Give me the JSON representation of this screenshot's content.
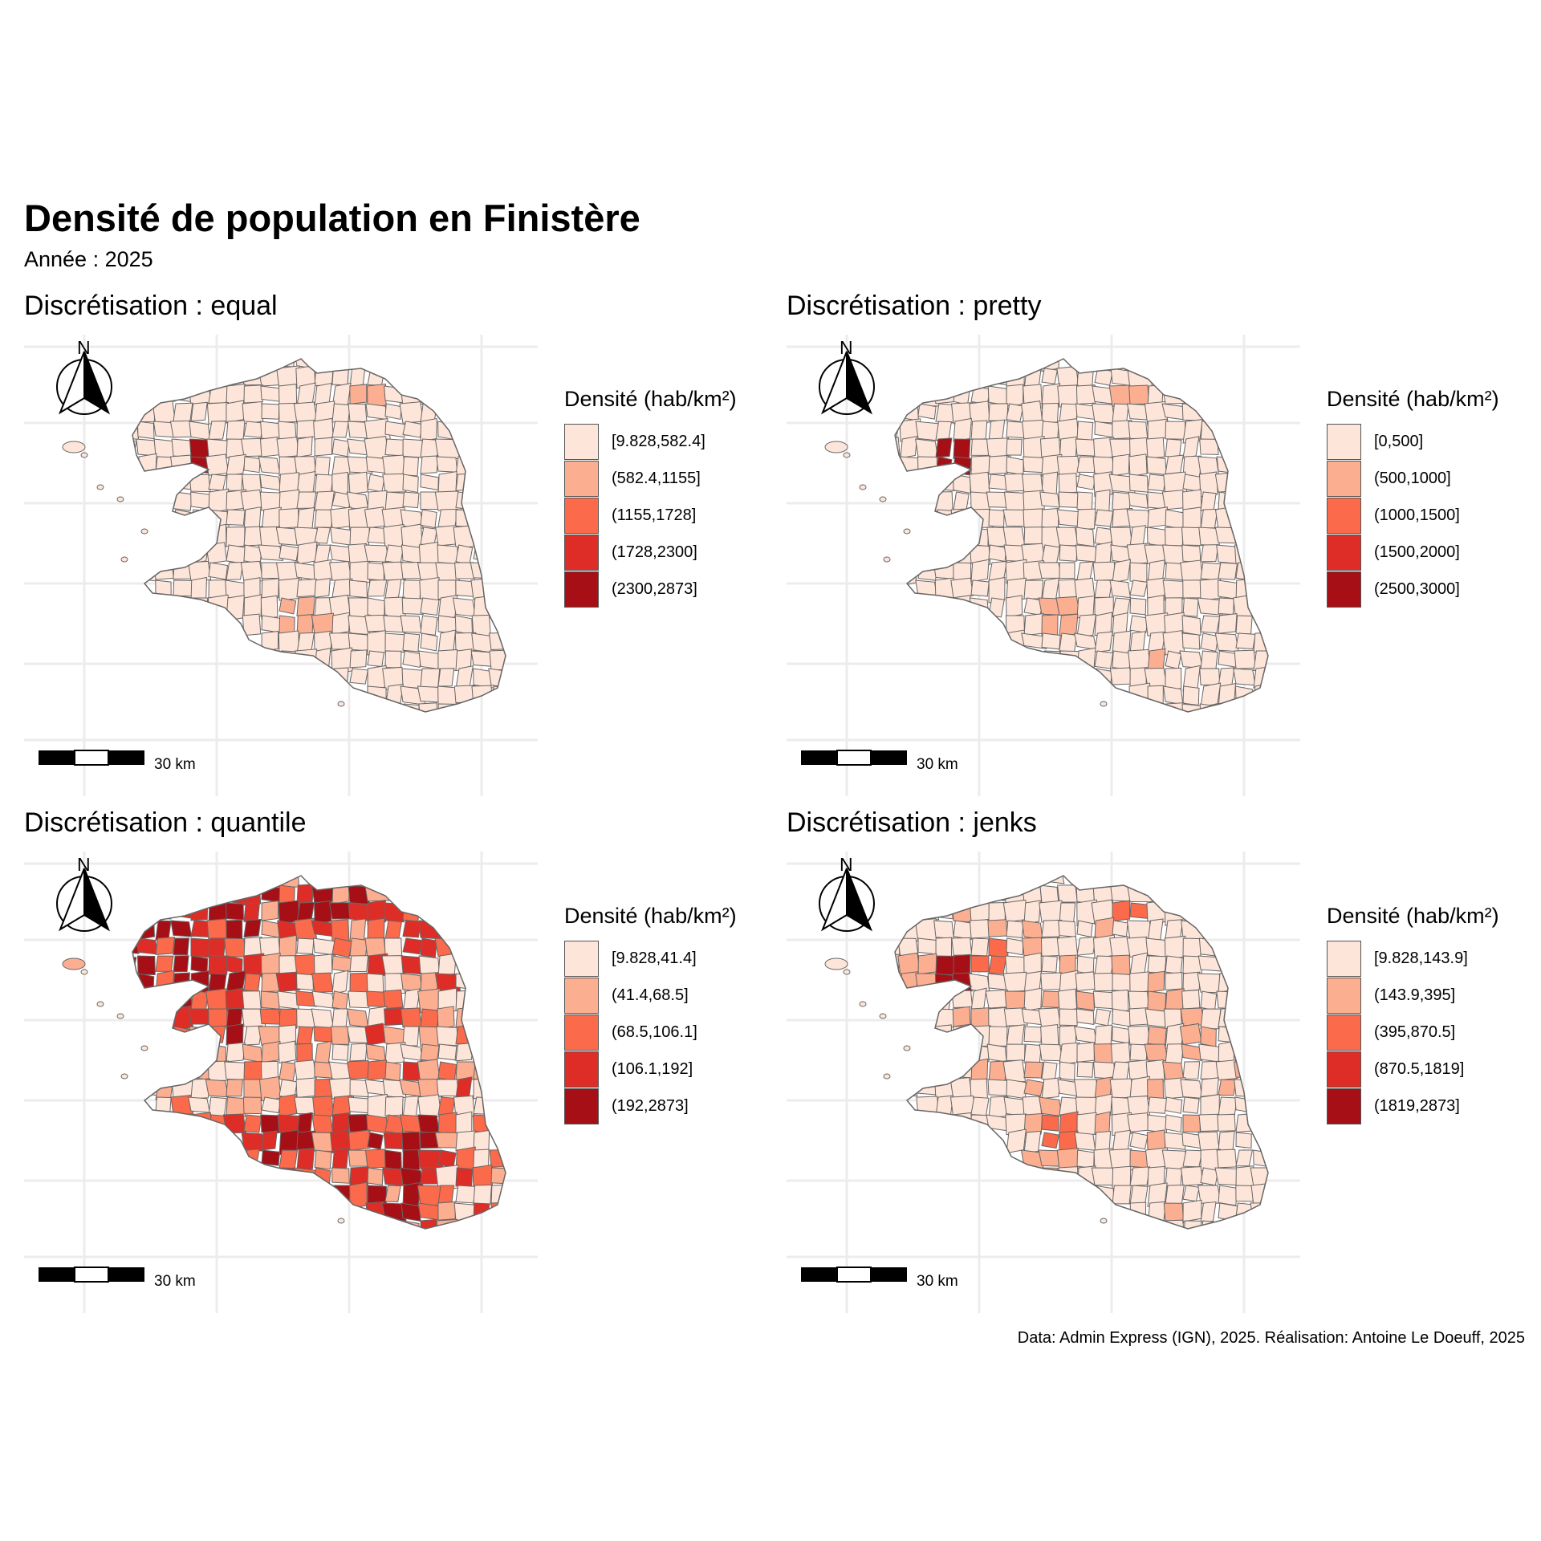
{
  "title": "Densité de population en Finistère",
  "subtitle": "Année : 2025",
  "caption": "Data: Admin Express (IGN), 2025. Réalisation: Antoine Le Doeuff, 2025",
  "colors": [
    "#fee5d9",
    "#fcae91",
    "#fb6a4a",
    "#de2d26",
    "#a50f15"
  ],
  "north_label": "N",
  "scale_label": "30 km",
  "icons": [
    "north-arrow-icon",
    "scale-bar-icon"
  ],
  "panels": [
    {
      "title": "Discrétisation : equal",
      "legend_title": "Densité (hab/km²)",
      "classes": [
        "[9.828,582.4]",
        "(582.4,1155]",
        "(1155,1728]",
        "(1728,2300]",
        "(2300,2873]"
      ],
      "pattern": "equal"
    },
    {
      "title": "Discrétisation : pretty",
      "legend_title": "Densité (hab/km²)",
      "classes": [
        "[0,500]",
        "(500,1000]",
        "(1000,1500]",
        "(1500,2000]",
        "(2500,3000]"
      ],
      "pattern": "pretty"
    },
    {
      "title": "Discrétisation : quantile",
      "legend_title": "Densité (hab/km²)",
      "classes": [
        "[9.828,41.4]",
        "(41.4,68.5]",
        "(68.5,106.1]",
        "(106.1,192]",
        "(192,2873]"
      ],
      "pattern": "quantile"
    },
    {
      "title": "Discrétisation : jenks",
      "legend_title": "Densité (hab/km²)",
      "classes": [
        "[9.828,143.9]",
        "(143.9,395]",
        "(395,870.5]",
        "(870.5,1819]",
        "(1819,2873]"
      ],
      "pattern": "jenks"
    }
  ]
}
